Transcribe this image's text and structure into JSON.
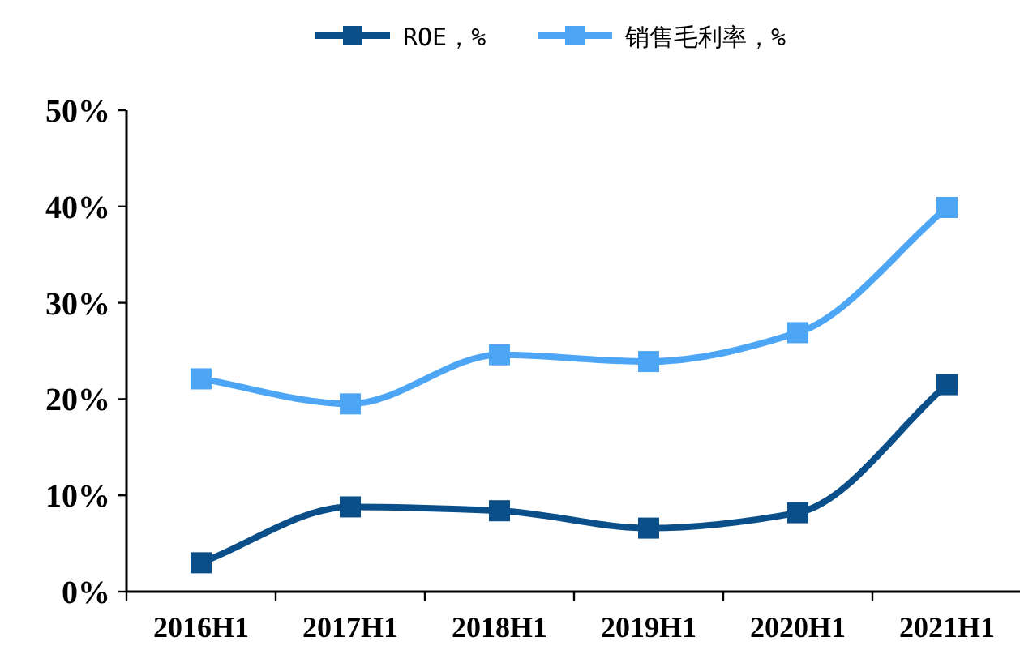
{
  "chart_data": {
    "type": "line",
    "categories": [
      "2016H1",
      "2017H1",
      "2018H1",
      "2019H1",
      "2020H1",
      "2021H1"
    ],
    "series": [
      {
        "name": "ROE，%",
        "color": "#0b4f8a",
        "values": [
          3.0,
          8.8,
          8.4,
          6.6,
          8.2,
          21.5
        ]
      },
      {
        "name": "销售毛利率，%",
        "color": "#4da6f5",
        "values": [
          22.1,
          19.5,
          24.6,
          23.9,
          26.9,
          39.9
        ]
      }
    ],
    "ylim": [
      0,
      50
    ],
    "yticks": [
      {
        "value": 0,
        "label": "0%"
      },
      {
        "value": 10,
        "label": "10%"
      },
      {
        "value": 20,
        "label": "20%"
      },
      {
        "value": 30,
        "label": "30%"
      },
      {
        "value": 40,
        "label": "40%"
      },
      {
        "value": 50,
        "label": "50%"
      }
    ],
    "legend": "top",
    "marker": "square",
    "line_style": "solid"
  }
}
